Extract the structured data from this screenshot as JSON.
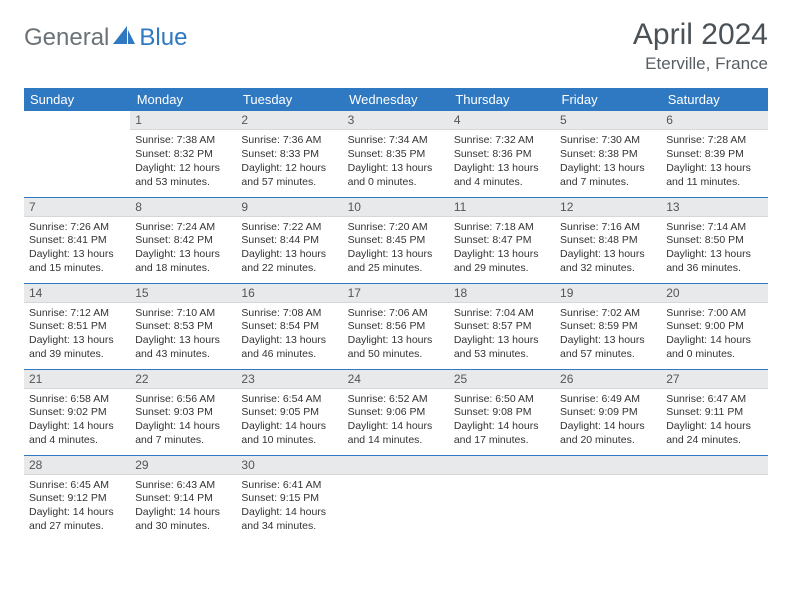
{
  "brand": {
    "part1": "General",
    "part2": "Blue"
  },
  "title": "April 2024",
  "location": "Eterville, France",
  "colors": {
    "header_bg": "#2f78c2",
    "header_text": "#ffffff",
    "brand_gray": "#6b7378",
    "brand_blue": "#2f78c2",
    "daynum_bg": "#e8e9ea",
    "border": "#2f78c2",
    "text": "#333333"
  },
  "day_headers": [
    "Sunday",
    "Monday",
    "Tuesday",
    "Wednesday",
    "Thursday",
    "Friday",
    "Saturday"
  ],
  "weeks": [
    [
      {
        "num": "",
        "sunrise": "",
        "sunset": "",
        "daylight": ""
      },
      {
        "num": "1",
        "sunrise": "Sunrise: 7:38 AM",
        "sunset": "Sunset: 8:32 PM",
        "daylight": "Daylight: 12 hours and 53 minutes."
      },
      {
        "num": "2",
        "sunrise": "Sunrise: 7:36 AM",
        "sunset": "Sunset: 8:33 PM",
        "daylight": "Daylight: 12 hours and 57 minutes."
      },
      {
        "num": "3",
        "sunrise": "Sunrise: 7:34 AM",
        "sunset": "Sunset: 8:35 PM",
        "daylight": "Daylight: 13 hours and 0 minutes."
      },
      {
        "num": "4",
        "sunrise": "Sunrise: 7:32 AM",
        "sunset": "Sunset: 8:36 PM",
        "daylight": "Daylight: 13 hours and 4 minutes."
      },
      {
        "num": "5",
        "sunrise": "Sunrise: 7:30 AM",
        "sunset": "Sunset: 8:38 PM",
        "daylight": "Daylight: 13 hours and 7 minutes."
      },
      {
        "num": "6",
        "sunrise": "Sunrise: 7:28 AM",
        "sunset": "Sunset: 8:39 PM",
        "daylight": "Daylight: 13 hours and 11 minutes."
      }
    ],
    [
      {
        "num": "7",
        "sunrise": "Sunrise: 7:26 AM",
        "sunset": "Sunset: 8:41 PM",
        "daylight": "Daylight: 13 hours and 15 minutes."
      },
      {
        "num": "8",
        "sunrise": "Sunrise: 7:24 AM",
        "sunset": "Sunset: 8:42 PM",
        "daylight": "Daylight: 13 hours and 18 minutes."
      },
      {
        "num": "9",
        "sunrise": "Sunrise: 7:22 AM",
        "sunset": "Sunset: 8:44 PM",
        "daylight": "Daylight: 13 hours and 22 minutes."
      },
      {
        "num": "10",
        "sunrise": "Sunrise: 7:20 AM",
        "sunset": "Sunset: 8:45 PM",
        "daylight": "Daylight: 13 hours and 25 minutes."
      },
      {
        "num": "11",
        "sunrise": "Sunrise: 7:18 AM",
        "sunset": "Sunset: 8:47 PM",
        "daylight": "Daylight: 13 hours and 29 minutes."
      },
      {
        "num": "12",
        "sunrise": "Sunrise: 7:16 AM",
        "sunset": "Sunset: 8:48 PM",
        "daylight": "Daylight: 13 hours and 32 minutes."
      },
      {
        "num": "13",
        "sunrise": "Sunrise: 7:14 AM",
        "sunset": "Sunset: 8:50 PM",
        "daylight": "Daylight: 13 hours and 36 minutes."
      }
    ],
    [
      {
        "num": "14",
        "sunrise": "Sunrise: 7:12 AM",
        "sunset": "Sunset: 8:51 PM",
        "daylight": "Daylight: 13 hours and 39 minutes."
      },
      {
        "num": "15",
        "sunrise": "Sunrise: 7:10 AM",
        "sunset": "Sunset: 8:53 PM",
        "daylight": "Daylight: 13 hours and 43 minutes."
      },
      {
        "num": "16",
        "sunrise": "Sunrise: 7:08 AM",
        "sunset": "Sunset: 8:54 PM",
        "daylight": "Daylight: 13 hours and 46 minutes."
      },
      {
        "num": "17",
        "sunrise": "Sunrise: 7:06 AM",
        "sunset": "Sunset: 8:56 PM",
        "daylight": "Daylight: 13 hours and 50 minutes."
      },
      {
        "num": "18",
        "sunrise": "Sunrise: 7:04 AM",
        "sunset": "Sunset: 8:57 PM",
        "daylight": "Daylight: 13 hours and 53 minutes."
      },
      {
        "num": "19",
        "sunrise": "Sunrise: 7:02 AM",
        "sunset": "Sunset: 8:59 PM",
        "daylight": "Daylight: 13 hours and 57 minutes."
      },
      {
        "num": "20",
        "sunrise": "Sunrise: 7:00 AM",
        "sunset": "Sunset: 9:00 PM",
        "daylight": "Daylight: 14 hours and 0 minutes."
      }
    ],
    [
      {
        "num": "21",
        "sunrise": "Sunrise: 6:58 AM",
        "sunset": "Sunset: 9:02 PM",
        "daylight": "Daylight: 14 hours and 4 minutes."
      },
      {
        "num": "22",
        "sunrise": "Sunrise: 6:56 AM",
        "sunset": "Sunset: 9:03 PM",
        "daylight": "Daylight: 14 hours and 7 minutes."
      },
      {
        "num": "23",
        "sunrise": "Sunrise: 6:54 AM",
        "sunset": "Sunset: 9:05 PM",
        "daylight": "Daylight: 14 hours and 10 minutes."
      },
      {
        "num": "24",
        "sunrise": "Sunrise: 6:52 AM",
        "sunset": "Sunset: 9:06 PM",
        "daylight": "Daylight: 14 hours and 14 minutes."
      },
      {
        "num": "25",
        "sunrise": "Sunrise: 6:50 AM",
        "sunset": "Sunset: 9:08 PM",
        "daylight": "Daylight: 14 hours and 17 minutes."
      },
      {
        "num": "26",
        "sunrise": "Sunrise: 6:49 AM",
        "sunset": "Sunset: 9:09 PM",
        "daylight": "Daylight: 14 hours and 20 minutes."
      },
      {
        "num": "27",
        "sunrise": "Sunrise: 6:47 AM",
        "sunset": "Sunset: 9:11 PM",
        "daylight": "Daylight: 14 hours and 24 minutes."
      }
    ],
    [
      {
        "num": "28",
        "sunrise": "Sunrise: 6:45 AM",
        "sunset": "Sunset: 9:12 PM",
        "daylight": "Daylight: 14 hours and 27 minutes."
      },
      {
        "num": "29",
        "sunrise": "Sunrise: 6:43 AM",
        "sunset": "Sunset: 9:14 PM",
        "daylight": "Daylight: 14 hours and 30 minutes."
      },
      {
        "num": "30",
        "sunrise": "Sunrise: 6:41 AM",
        "sunset": "Sunset: 9:15 PM",
        "daylight": "Daylight: 14 hours and 34 minutes."
      },
      {
        "num": "",
        "sunrise": "",
        "sunset": "",
        "daylight": ""
      },
      {
        "num": "",
        "sunrise": "",
        "sunset": "",
        "daylight": ""
      },
      {
        "num": "",
        "sunrise": "",
        "sunset": "",
        "daylight": ""
      },
      {
        "num": "",
        "sunrise": "",
        "sunset": "",
        "daylight": ""
      }
    ]
  ]
}
